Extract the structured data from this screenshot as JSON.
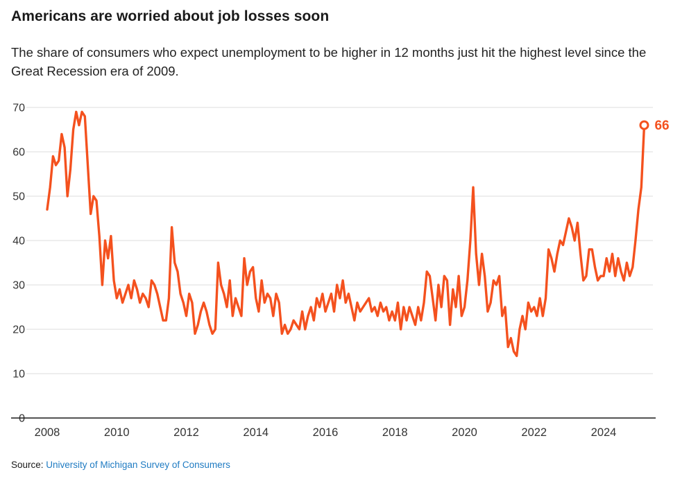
{
  "header": {
    "title": "Americans are worried about job losses soon",
    "subtitle": "The share of consumers who expect unemployment to be higher in 12 months just hit the highest level since the Great Recession era of 2009."
  },
  "footer": {
    "source_prefix": "Source:",
    "source_link": "University of Michigan Survey of Consumers"
  },
  "colors": {
    "line": "#f4511e",
    "grid": "#dcdcdc",
    "axis": "#1a1a1a",
    "tick_label": "#333333",
    "link": "#1f7bc2",
    "end_label": "#f4511e"
  },
  "chart_data": {
    "type": "line",
    "title": "Americans are worried about job losses soon",
    "subtitle": "The share of consumers who expect unemployment to be higher in 12 months just hit the highest level since the Great Recession era of 2009.",
    "frequency": "monthly",
    "x_start": {
      "year": 2008,
      "month": 1
    },
    "ylim": [
      0,
      70
    ],
    "y_ticks": [
      0,
      10,
      20,
      30,
      40,
      50,
      60,
      70
    ],
    "x_ticks": [
      2008,
      2010,
      2012,
      2014,
      2016,
      2018,
      2020,
      2022,
      2024
    ],
    "grid": true,
    "end_label": {
      "value": 66
    },
    "values": [
      47,
      52,
      59,
      57,
      58,
      64,
      61,
      50,
      56,
      65,
      69,
      66,
      69,
      68,
      57,
      46,
      50,
      49,
      41,
      30,
      40,
      36,
      41,
      31,
      27,
      29,
      26,
      28,
      30,
      27,
      31,
      29,
      26,
      28,
      27,
      25,
      31,
      30,
      28,
      25,
      22,
      22,
      27,
      43,
      35,
      33,
      28,
      26,
      23,
      28,
      26,
      19,
      21,
      24,
      26,
      24,
      21,
      19,
      20,
      35,
      30,
      28,
      25,
      31,
      23,
      27,
      25,
      23,
      36,
      30,
      33,
      34,
      27,
      24,
      31,
      26,
      28,
      27,
      23,
      28,
      26,
      19,
      21,
      19,
      20,
      22,
      21,
      20,
      24,
      20,
      23,
      25,
      22,
      27,
      25,
      28,
      24,
      26,
      28,
      24,
      30,
      27,
      31,
      26,
      28,
      25,
      22,
      26,
      24,
      25,
      26,
      27,
      24,
      25,
      23,
      26,
      24,
      25,
      22,
      24,
      22,
      26,
      20,
      25,
      22,
      25,
      23,
      21,
      25,
      22,
      26,
      33,
      32,
      27,
      22,
      30,
      25,
      32,
      31,
      21,
      29,
      25,
      32,
      23,
      25,
      31,
      40,
      52,
      37,
      30,
      37,
      32,
      24,
      26,
      31,
      30,
      32,
      23,
      25,
      16,
      18,
      15,
      14,
      20,
      23,
      20,
      26,
      24,
      25,
      23,
      27,
      23,
      27,
      38,
      36,
      33,
      37,
      40,
      39,
      42,
      45,
      43,
      40,
      44,
      37,
      31,
      32,
      38,
      38,
      34,
      31,
      32,
      32,
      36,
      33,
      37,
      32,
      36,
      33,
      31,
      35,
      32,
      34,
      40,
      47,
      52,
      66
    ]
  }
}
